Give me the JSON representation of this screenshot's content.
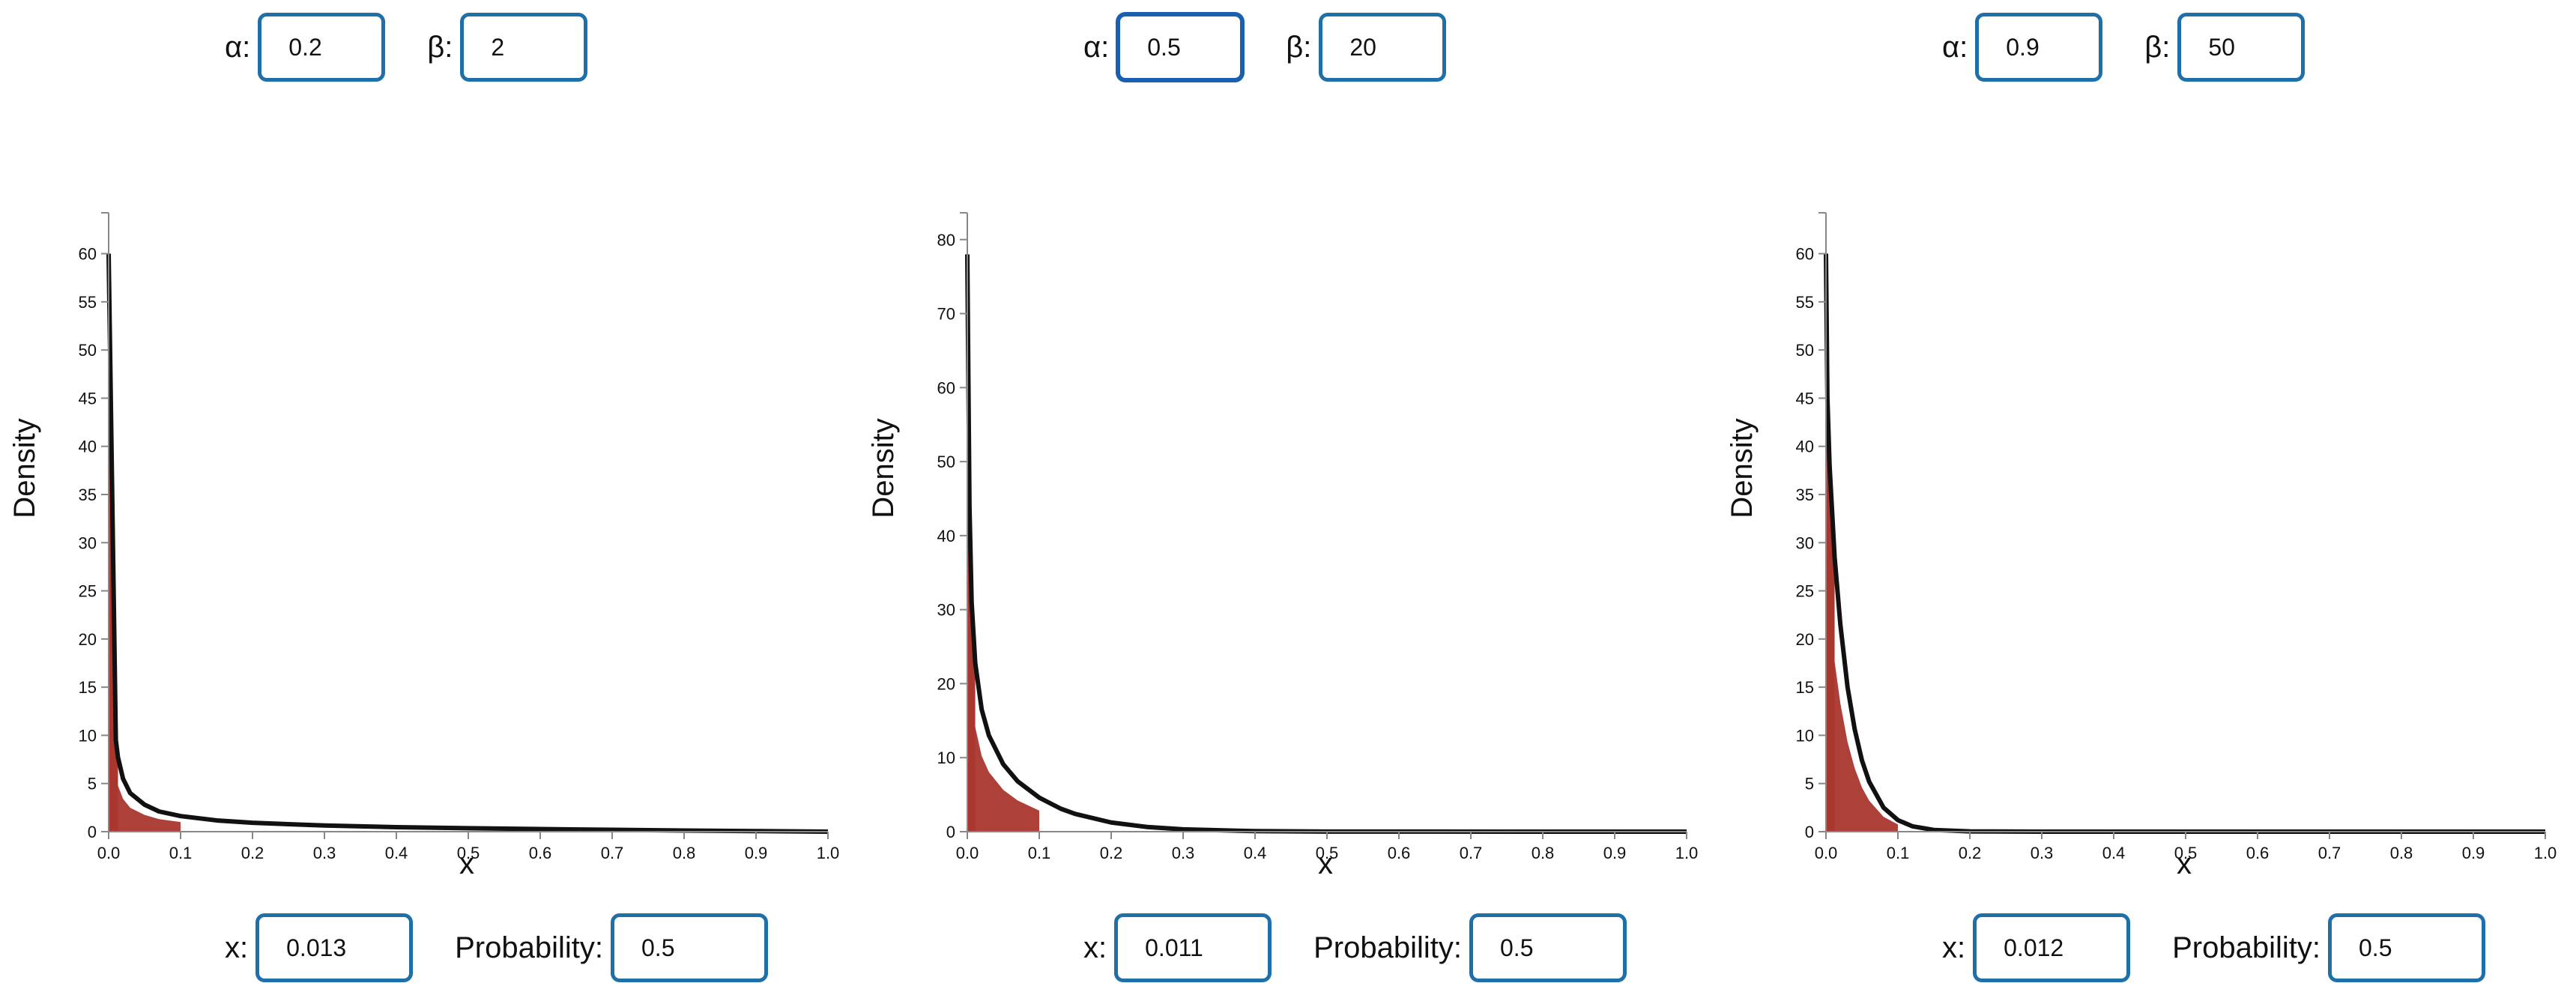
{
  "controls_label_alpha": "α:",
  "controls_label_beta": "β:",
  "controls_label_x": "x:",
  "controls_label_probability": "Probability:",
  "colors": {
    "curve": "#111111",
    "fill": "#a9372f",
    "input_border": "#1f6fa8"
  },
  "panels": [
    {
      "alpha": "0.2",
      "beta": "2",
      "x": "0.013",
      "probability": "0.5"
    },
    {
      "alpha": "0.5",
      "beta": "20",
      "x": "0.011",
      "probability": "0.5"
    },
    {
      "alpha": "0.9",
      "beta": "50",
      "x": "0.012",
      "probability": "0.5"
    }
  ],
  "chart_data": [
    {
      "type": "area",
      "title": "",
      "xlabel": "x",
      "ylabel": "Density",
      "xlim": [
        0,
        1
      ],
      "ylim": [
        0,
        63
      ],
      "x_ticks": [
        "0.0",
        "0.1",
        "0.2",
        "0.3",
        "0.4",
        "0.5",
        "0.6",
        "0.7",
        "0.8",
        "0.9",
        "1.0"
      ],
      "y_ticks": [
        "0",
        "5",
        "10",
        "15",
        "20",
        "25",
        "30",
        "35",
        "40",
        "45",
        "50",
        "55",
        "60"
      ],
      "y_tick_values": [
        0,
        5,
        10,
        15,
        20,
        25,
        30,
        35,
        40,
        45,
        50,
        55,
        60
      ],
      "distribution": "beta",
      "alpha": 0.2,
      "beta": 2,
      "shaded_up_to_x": 0.013,
      "points": [
        [
          0.0,
          60
        ],
        [
          0.01,
          9.5
        ],
        [
          0.013,
          7.7
        ],
        [
          0.02,
          5.5
        ],
        [
          0.03,
          4.0
        ],
        [
          0.05,
          2.8
        ],
        [
          0.07,
          2.1
        ],
        [
          0.1,
          1.62
        ],
        [
          0.15,
          1.17
        ],
        [
          0.2,
          0.92
        ],
        [
          0.3,
          0.64
        ],
        [
          0.4,
          0.47
        ],
        [
          0.5,
          0.36
        ],
        [
          0.6,
          0.27
        ],
        [
          0.7,
          0.19
        ],
        [
          0.8,
          0.12
        ],
        [
          0.9,
          0.06
        ],
        [
          1.0,
          0.0
        ]
      ]
    },
    {
      "type": "area",
      "title": "",
      "xlabel": "x",
      "ylabel": "Density",
      "xlim": [
        0,
        1
      ],
      "ylim": [
        0,
        82
      ],
      "x_ticks": [
        "0.0",
        "0.1",
        "0.2",
        "0.3",
        "0.4",
        "0.5",
        "0.6",
        "0.7",
        "0.8",
        "0.9",
        "1.0"
      ],
      "y_ticks": [
        "0",
        "10",
        "20",
        "30",
        "40",
        "50",
        "60",
        "70",
        "80"
      ],
      "y_tick_values": [
        0,
        10,
        20,
        30,
        40,
        50,
        60,
        70,
        80
      ],
      "distribution": "beta",
      "alpha": 0.5,
      "beta": 20,
      "shaded_up_to_x": 0.011,
      "points": [
        [
          0.0,
          78
        ],
        [
          0.003,
          44
        ],
        [
          0.006,
          31
        ],
        [
          0.011,
          22.8
        ],
        [
          0.02,
          16.5
        ],
        [
          0.03,
          13.0
        ],
        [
          0.05,
          9.1
        ],
        [
          0.07,
          6.8
        ],
        [
          0.1,
          4.6
        ],
        [
          0.13,
          3.1
        ],
        [
          0.15,
          2.4
        ],
        [
          0.2,
          1.24
        ],
        [
          0.25,
          0.63
        ],
        [
          0.3,
          0.32
        ],
        [
          0.4,
          0.07
        ],
        [
          0.5,
          0.01
        ],
        [
          1.0,
          0.0
        ]
      ]
    },
    {
      "type": "area",
      "title": "",
      "xlabel": "x",
      "ylabel": "Density",
      "xlim": [
        0,
        1
      ],
      "ylim": [
        0,
        63
      ],
      "x_ticks": [
        "0.0",
        "0.1",
        "0.2",
        "0.3",
        "0.4",
        "0.5",
        "0.6",
        "0.7",
        "0.8",
        "0.9",
        "1.0"
      ],
      "y_ticks": [
        "0",
        "5",
        "10",
        "15",
        "20",
        "25",
        "30",
        "35",
        "40",
        "45",
        "50",
        "55",
        "60"
      ],
      "y_tick_values": [
        0,
        5,
        10,
        15,
        20,
        25,
        30,
        35,
        40,
        45,
        50,
        55,
        60
      ],
      "distribution": "beta",
      "alpha": 0.9,
      "beta": 50,
      "shaded_up_to_x": 0.012,
      "points": [
        [
          0.0,
          60
        ],
        [
          0.002,
          45
        ],
        [
          0.005,
          38
        ],
        [
          0.012,
          28.5
        ],
        [
          0.02,
          21.5
        ],
        [
          0.03,
          15.0
        ],
        [
          0.04,
          10.6
        ],
        [
          0.05,
          7.4
        ],
        [
          0.06,
          5.2
        ],
        [
          0.08,
          2.5
        ],
        [
          0.1,
          1.2
        ],
        [
          0.12,
          0.56
        ],
        [
          0.15,
          0.18
        ],
        [
          0.2,
          0.03
        ],
        [
          0.3,
          0.0
        ],
        [
          1.0,
          0.0
        ]
      ]
    }
  ]
}
